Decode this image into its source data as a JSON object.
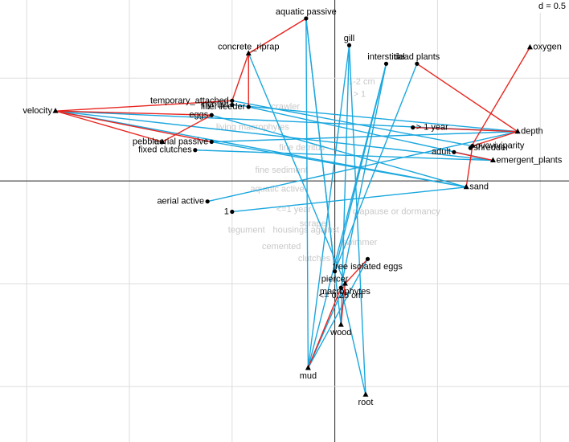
{
  "chart_data": {
    "type": "scatter",
    "grid_label": "d = 0.5",
    "xlim": [
      -1.63,
      1.14
    ],
    "ylim": [
      -1.27,
      0.88
    ],
    "xticks": [
      -1.5,
      -1,
      -0.5,
      0,
      0.5,
      1
    ],
    "yticks": [
      -1,
      -0.5,
      0,
      0.5
    ],
    "grid": true,
    "points": [
      {
        "label": "velocity",
        "x": -1.36,
        "y": 0.34,
        "shape": "triangle",
        "anchor": "left"
      },
      {
        "label": "pebble",
        "x": -0.84,
        "y": 0.19,
        "shape": "triangle",
        "anchor": "left"
      },
      {
        "label": "concrete_riprap",
        "x": -0.42,
        "y": 0.62,
        "shape": "triangle",
        "anchor": "top"
      },
      {
        "label": "aquatic passive",
        "x": -0.14,
        "y": 0.79,
        "shape": "circle",
        "anchor": "top"
      },
      {
        "label": "gill",
        "x": 0.07,
        "y": 0.66,
        "shape": "circle",
        "anchor": "top"
      },
      {
        "label": "interstitial",
        "x": 0.25,
        "y": 0.57,
        "shape": "circle",
        "anchor": "top"
      },
      {
        "label": "dead plants",
        "x": 0.4,
        "y": 0.57,
        "shape": "circle",
        "anchor": "top"
      },
      {
        "label": "oxygen",
        "x": 0.95,
        "y": 0.65,
        "shape": "triangle",
        "anchor": "right"
      },
      {
        "label": "depth",
        "x": 0.89,
        "y": 0.24,
        "shape": "triangle",
        "anchor": "right"
      },
      {
        "label": "emergent_plants",
        "x": 0.77,
        "y": 0.1,
        "shape": "triangle",
        "anchor": "right"
      },
      {
        "label": "sand",
        "x": 0.64,
        "y": -0.03,
        "shape": "triangle",
        "anchor": "right"
      },
      {
        "label": "mud",
        "x": -0.13,
        "y": -0.91,
        "shape": "triangle",
        "anchor": "bottom"
      },
      {
        "label": "root",
        "x": 0.15,
        "y": -1.04,
        "shape": "triangle",
        "anchor": "bottom"
      },
      {
        "label": "wood",
        "x": 0.03,
        "y": -0.7,
        "shape": "triangle",
        "anchor": "bottom"
      },
      {
        "label": "macrophytes",
        "x": 0.05,
        "y": -0.5,
        "shape": "triangle",
        "anchor": "bottom"
      },
      {
        "label": "temporary_attached",
        "x": -0.5,
        "y": 0.39,
        "shape": "circle",
        "anchor": "left"
      },
      {
        "label": "nymph",
        "x": -0.5,
        "y": 0.37,
        "shape": "circle",
        "anchor": "left"
      },
      {
        "label": "filter-feeder",
        "x": -0.42,
        "y": 0.36,
        "shape": "circle",
        "anchor": "left"
      },
      {
        "label": "eggs",
        "x": -0.6,
        "y": 0.32,
        "shape": "circle",
        "anchor": "left"
      },
      {
        "label": "aerial passive",
        "x": -0.6,
        "y": 0.19,
        "shape": "circle",
        "anchor": "left"
      },
      {
        "label": "fixed clutches",
        "x": -0.68,
        "y": 0.15,
        "shape": "circle",
        "anchor": "left"
      },
      {
        "label": "aerial active",
        "x": -0.62,
        "y": -0.1,
        "shape": "circle",
        "anchor": "left"
      },
      {
        "label": "1",
        "x": -0.5,
        "y": -0.15,
        "shape": "circle",
        "anchor": "left"
      },
      {
        "label": "> 1 year",
        "x": 0.38,
        "y": 0.26,
        "shape": "circle",
        "anchor": "right"
      },
      {
        "label": "ovoviviparity",
        "x": 0.67,
        "y": 0.17,
        "shape": "circle",
        "anchor": "right"
      },
      {
        "label": "shredder",
        "x": 0.66,
        "y": 0.16,
        "shape": "circle",
        "anchor": "right"
      },
      {
        "label": "adult",
        "x": 0.58,
        "y": 0.14,
        "shape": "circle",
        "anchor": "left"
      },
      {
        "label": "free isolated eggs",
        "x": 0.16,
        "y": -0.38,
        "shape": "circle",
        "anchor": "bottom"
      },
      {
        "label": "piercer",
        "x": 0.0,
        "y": -0.44,
        "shape": "circle",
        "anchor": "bottom"
      },
      {
        "label": "<= 0.25 cm",
        "x": 0.03,
        "y": -0.52,
        "shape": "circle",
        "anchor": "bottom"
      }
    ],
    "link_groups": [
      {
        "color": "#1aa7de",
        "pairs": [
          [
            0,
            8
          ],
          [
            0,
            10
          ],
          [
            0,
            9
          ],
          [
            3,
            11
          ],
          [
            3,
            13
          ],
          [
            3,
            28
          ],
          [
            4,
            11
          ],
          [
            4,
            12
          ],
          [
            4,
            13
          ],
          [
            5,
            11
          ],
          [
            5,
            28
          ],
          [
            6,
            28
          ],
          [
            21,
            8
          ],
          [
            20,
            9
          ],
          [
            19,
            8
          ],
          [
            19,
            10
          ],
          [
            18,
            10
          ],
          [
            17,
            9
          ],
          [
            11,
            27
          ],
          [
            11,
            14
          ],
          [
            22,
            10
          ],
          [
            12,
            29
          ],
          [
            15,
            24
          ],
          [
            16,
            8
          ],
          [
            14,
            2
          ],
          [
            29,
            5
          ]
        ]
      },
      {
        "color": "#e8251f",
        "pairs": [
          [
            0,
            15
          ],
          [
            0,
            18
          ],
          [
            0,
            19
          ],
          [
            0,
            1
          ],
          [
            1,
            18
          ],
          [
            2,
            15
          ],
          [
            2,
            17
          ],
          [
            3,
            2
          ],
          [
            6,
            8
          ],
          [
            7,
            25
          ],
          [
            8,
            23
          ],
          [
            8,
            24
          ],
          [
            9,
            26
          ],
          [
            10,
            24
          ],
          [
            13,
            14
          ],
          [
            11,
            29
          ],
          [
            14,
            27
          ]
        ]
      }
    ],
    "faded_labels": [
      {
        "label": "crawler",
        "x": -0.24,
        "y": 0.36
      },
      {
        "label": "1-2 cm",
        "x": 0.13,
        "y": 0.48
      },
      {
        "label": "> 1",
        "x": 0.12,
        "y": 0.42
      },
      {
        "label": "living macrophytes",
        "x": -0.4,
        "y": 0.26
      },
      {
        "label": "fine detritus",
        "x": -0.16,
        "y": 0.16
      },
      {
        "label": "fine sediment",
        "x": -0.26,
        "y": 0.05
      },
      {
        "label": "aquatic active",
        "x": -0.28,
        "y": -0.04
      },
      {
        "label": "<=1 year",
        "x": -0.2,
        "y": -0.14
      },
      {
        "label": "tegument",
        "x": -0.43,
        "y": -0.24
      },
      {
        "label": "housings against",
        "x": -0.14,
        "y": -0.24
      },
      {
        "label": "cemented",
        "x": -0.26,
        "y": -0.32
      },
      {
        "label": "clutches",
        "x": -0.1,
        "y": -0.38
      },
      {
        "label": "scraper",
        "x": -0.1,
        "y": -0.21
      },
      {
        "label": "diapause or dormancy",
        "x": 0.3,
        "y": -0.15
      },
      {
        "label": "swimmer",
        "x": 0.12,
        "y": -0.3
      }
    ]
  }
}
